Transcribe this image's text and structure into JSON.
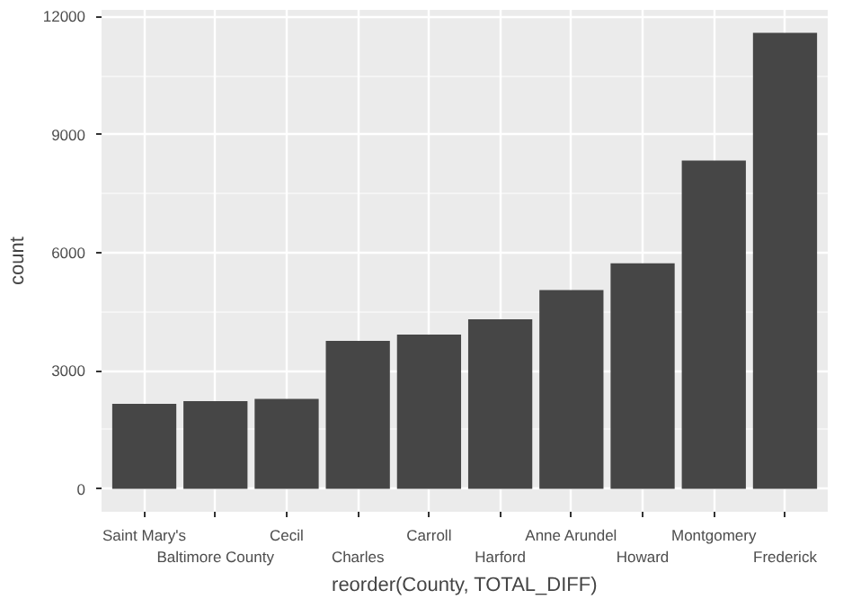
{
  "chart_data": {
    "type": "bar",
    "xlabel": "reorder(County, TOTAL_DIFF)",
    "ylabel": "count",
    "categories": [
      "Saint Mary's",
      "Baltimore County",
      "Cecil",
      "Charles",
      "Carroll",
      "Harford",
      "Anne Arundel",
      "Howard",
      "Montgomery",
      "Frederick"
    ],
    "values": [
      2160,
      2230,
      2290,
      3760,
      3920,
      4310,
      5050,
      5730,
      8340,
      11590
    ],
    "color": "#464646",
    "ylim": [
      -580,
      12170
    ],
    "yticks": [
      0,
      3000,
      6000,
      9000,
      12000
    ],
    "grid": true
  }
}
